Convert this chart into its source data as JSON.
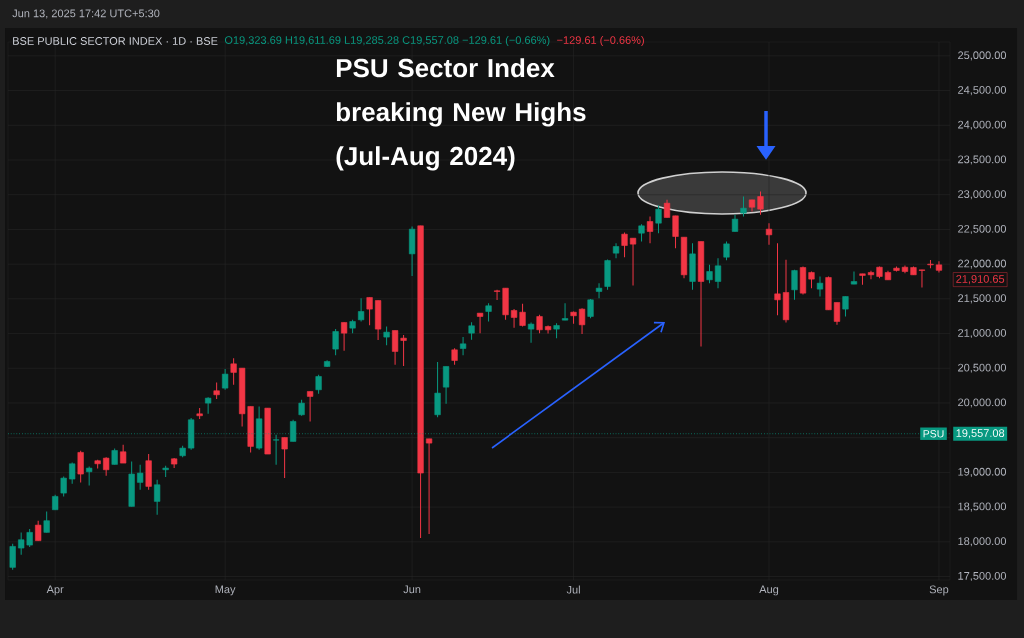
{
  "chart_data": {
    "type": "candlestick",
    "title": "BSE PUBLIC SECTOR INDEX · 1D · BSE",
    "categories": [
      null,
      null,
      null,
      null,
      null,
      "Apr",
      null,
      null,
      null,
      null,
      null,
      null,
      null,
      null,
      null,
      null,
      null,
      null,
      null,
      null,
      null,
      null,
      null,
      null,
      null,
      "May",
      null,
      null,
      null,
      null,
      null,
      null,
      null,
      null,
      null,
      null,
      null,
      null,
      null,
      null,
      null,
      null,
      null,
      null,
      null,
      null,
      null,
      "Jun",
      null,
      null,
      null,
      null,
      null,
      null,
      null,
      null,
      null,
      null,
      null,
      null,
      null,
      null,
      null,
      null,
      null,
      null,
      "Jul",
      null,
      null,
      null,
      null,
      null,
      null,
      null,
      null,
      null,
      null,
      null,
      null,
      null,
      null,
      null,
      null,
      null,
      null,
      null,
      null,
      null,
      null,
      "Aug",
      null,
      null,
      null,
      null,
      null,
      null,
      null,
      null,
      null,
      null,
      null,
      null,
      null,
      null,
      null,
      null,
      null,
      null,
      null,
      "Sep"
    ],
    "ohlc": [
      [
        17632,
        17972,
        17598,
        17934
      ],
      [
        17910,
        18136,
        17814,
        18030
      ],
      [
        17953,
        18184,
        17924,
        18136
      ],
      [
        18241,
        18304,
        18016,
        18016
      ],
      [
        18136,
        18438,
        18136,
        18304
      ],
      [
        18462,
        18678,
        18462,
        18654
      ],
      [
        18702,
        18942,
        18654,
        18918
      ],
      [
        18904,
        19144,
        18836,
        19124
      ],
      [
        19288,
        19312,
        18856,
        18976
      ],
      [
        19009,
        19086,
        18812,
        19062
      ],
      [
        19168,
        19182,
        19057,
        19124
      ],
      [
        19206,
        19220,
        18952,
        19038
      ],
      [
        19115,
        19345,
        19115,
        19316
      ],
      [
        19297,
        19398,
        19134,
        19134
      ],
      [
        18510,
        19158,
        18510,
        18976
      ],
      [
        18856,
        19110,
        18750,
        18990
      ],
      [
        19168,
        19264,
        18750,
        18798
      ],
      [
        18582,
        18894,
        18390,
        18822
      ],
      [
        19038,
        19096,
        18932,
        19062
      ],
      [
        19196,
        19206,
        19062,
        19120
      ],
      [
        19240,
        19384,
        19220,
        19350
      ],
      [
        19350,
        19782,
        19326,
        19758
      ],
      [
        19844,
        19926,
        19768,
        19816
      ],
      [
        19998,
        20084,
        19844,
        20070
      ],
      [
        20176,
        20296,
        20056,
        20118
      ],
      [
        20214,
        20488,
        20190,
        20416
      ],
      [
        20564,
        20646,
        20262,
        20440
      ],
      [
        20502,
        20502,
        19662,
        19844
      ],
      [
        19950,
        19950,
        19288,
        19374
      ],
      [
        19350,
        19950,
        19326,
        19772
      ],
      [
        19926,
        19926,
        19264,
        19264
      ],
      [
        19465,
        19542,
        19110,
        19470
      ],
      [
        19503,
        19503,
        18918,
        19336
      ],
      [
        19446,
        19758,
        19446,
        19734
      ],
      [
        19830,
        20046,
        19816,
        19998
      ],
      [
        20166,
        20166,
        19734,
        20094
      ],
      [
        20190,
        20406,
        20134,
        20382
      ],
      [
        20526,
        20614,
        20518,
        20598
      ],
      [
        20776,
        21064,
        20686,
        21030
      ],
      [
        21160,
        21164,
        20753,
        21006
      ],
      [
        21078,
        21198,
        21006,
        21174
      ],
      [
        21198,
        21510,
        21174,
        21318
      ],
      [
        21520,
        21520,
        21120,
        21352
      ],
      [
        21476,
        21476,
        20907,
        21064
      ],
      [
        20949,
        21102,
        20830,
        21020
      ],
      [
        21044,
        21044,
        20552,
        20742
      ],
      [
        20934,
        20978,
        20534,
        20900
      ],
      [
        22148,
        22542,
        21830,
        22504
      ],
      [
        22552,
        22552,
        18054,
        18990
      ],
      [
        19484,
        19484,
        18114,
        19422
      ],
      [
        19830,
        20590,
        19796,
        20142
      ],
      [
        20228,
        20526,
        19988,
        20526
      ],
      [
        20766,
        20790,
        20552,
        20612
      ],
      [
        20785,
        20950,
        20686,
        20852
      ],
      [
        21006,
        21164,
        20910,
        21112
      ],
      [
        21294,
        21294,
        21006,
        21246
      ],
      [
        21318,
        21438,
        21174,
        21400
      ],
      [
        21616,
        21630,
        21485,
        21606
      ],
      [
        21654,
        21654,
        21198,
        21270
      ],
      [
        21332,
        21352,
        21083,
        21232
      ],
      [
        21308,
        21430,
        21102,
        21116
      ],
      [
        21064,
        21160,
        20866,
        21136
      ],
      [
        21246,
        21270,
        21006,
        21054
      ],
      [
        21102,
        21116,
        21000,
        21054
      ],
      [
        21064,
        21150,
        20934,
        21116
      ],
      [
        21193,
        21438,
        21193,
        21217
      ],
      [
        21308,
        21318,
        21140,
        21256
      ],
      [
        21352,
        21366,
        20992,
        21126
      ],
      [
        21246,
        21496,
        21222,
        21486
      ],
      [
        21606,
        21726,
        21510,
        21654
      ],
      [
        21678,
        22066,
        21630,
        22052
      ],
      [
        22158,
        22302,
        22086,
        22254
      ],
      [
        22432,
        22456,
        22100,
        22268
      ],
      [
        22374,
        22374,
        21694,
        22288
      ],
      [
        22446,
        22576,
        22326,
        22552
      ],
      [
        22614,
        22686,
        22302,
        22470
      ],
      [
        22590,
        22845,
        22446,
        22792
      ],
      [
        22878,
        22926,
        22672,
        22672
      ],
      [
        22696,
        22696,
        22230,
        22398
      ],
      [
        22388,
        22388,
        21798,
        21846
      ],
      [
        21750,
        22302,
        21630,
        22148
      ],
      [
        22326,
        22326,
        20814,
        21750
      ],
      [
        21774,
        21990,
        21726,
        21894
      ],
      [
        21750,
        22086,
        21654,
        21976
      ],
      [
        22100,
        22326,
        22056,
        22292
      ],
      [
        22470,
        22710,
        22470,
        22648
      ],
      [
        22734,
        22974,
        22686,
        22806
      ],
      [
        22926,
        22926,
        22758,
        22820
      ],
      [
        22974,
        23046,
        22710,
        22792
      ],
      [
        22504,
        22590,
        22278,
        22422
      ],
      [
        21572,
        22302,
        21262,
        21486
      ],
      [
        21592,
        22062,
        21160,
        21198
      ],
      [
        21630,
        21918,
        21486,
        21908
      ],
      [
        21952,
        21966,
        21562,
        21582
      ],
      [
        21880,
        21894,
        21654,
        21784
      ],
      [
        21640,
        21822,
        21534,
        21726
      ],
      [
        21808,
        21822,
        21342,
        21342
      ],
      [
        21448,
        21448,
        21126,
        21174
      ],
      [
        21352,
        21534,
        21246,
        21534
      ],
      [
        21712,
        21894,
        21712,
        21750
      ],
      [
        21861,
        21861,
        21702,
        21836
      ],
      [
        21880,
        21904,
        21784,
        21846
      ],
      [
        21956,
        21966,
        21798,
        21822
      ],
      [
        21880,
        21904,
        21774,
        21774
      ],
      [
        21942,
        21966,
        21894,
        21908
      ],
      [
        21956,
        21980,
        21870,
        21894
      ],
      [
        21952,
        21966,
        21846,
        21846
      ],
      [
        21918,
        21918,
        21662,
        21908
      ],
      [
        22000,
        22060,
        21940,
        21990
      ],
      [
        21990,
        22040,
        21880,
        21910.65
      ]
    ],
    "colors": [
      "#089981",
      "#089981",
      "#089981",
      "#f23645",
      "#089981",
      "#089981",
      "#089981",
      "#089981",
      "#f23645",
      "#089981",
      "#f23645",
      "#f23645",
      "#089981",
      "#f23645",
      "#089981",
      "#089981",
      "#f23645",
      "#089981",
      "#089981",
      "#f23645",
      "#089981",
      "#089981",
      "#f23645",
      "#089981",
      "#f23645",
      "#089981",
      "#f23645",
      "#f23645",
      "#f23645",
      "#089981",
      "#f23645",
      "#089981",
      "#f23645",
      "#089981",
      "#089981",
      "#f23645",
      "#089981",
      "#089981",
      "#089981",
      "#f23645",
      "#089981",
      "#089981",
      "#f23645",
      "#f23645",
      "#089981",
      "#f23645",
      "#f23645",
      "#089981",
      "#f23645",
      "#f23645",
      "#089981",
      "#089981",
      "#f23645",
      "#089981",
      "#089981",
      "#f23645",
      "#089981",
      "#f23645",
      "#f23645",
      "#f23645",
      "#f23645",
      "#089981",
      "#f23645",
      "#f23645",
      "#089981",
      "#089981",
      "#f23645",
      "#f23645",
      "#089981",
      "#089981",
      "#089981",
      "#089981",
      "#f23645",
      "#f23645",
      "#089981",
      "#f23645",
      "#089981",
      "#f23645",
      "#f23645",
      "#f23645",
      "#089981",
      "#f23645",
      "#089981",
      "#089981",
      "#089981",
      "#089981",
      "#089981",
      "#f23645",
      "#f23645",
      "#f23645",
      "#f23645",
      "#f23645",
      "#089981",
      "#f23645",
      "#f23645",
      "#089981",
      "#f23645",
      "#f23645",
      "#089981",
      "#089981",
      "#f23645",
      "#f23645",
      "#f23645",
      "#f23645",
      "#f23645",
      "#f23645",
      "#f23645",
      "#f23645",
      "#f23645",
      "#f23645"
    ],
    "ylim": [
      17450,
      25200
    ],
    "yticks": [
      {
        "value": 17500,
        "label": "17,500.00"
      },
      {
        "value": 18000,
        "label": "18,000.00"
      },
      {
        "value": 18500,
        "label": "18,500.00"
      },
      {
        "value": 19000,
        "label": "19,000.00"
      },
      {
        "value": 19500,
        "label": null
      },
      {
        "value": 20000,
        "label": "20,000.00"
      },
      {
        "value": 20500,
        "label": "20,500.00"
      },
      {
        "value": 21000,
        "label": "21,000.00"
      },
      {
        "value": 21500,
        "label": "21,500.00"
      },
      {
        "value": 22000,
        "label": "22,000.00"
      },
      {
        "value": 22500,
        "label": "22,500.00"
      },
      {
        "value": 23000,
        "label": "23,000.00"
      },
      {
        "value": 23500,
        "label": "23,500.00"
      },
      {
        "value": 24000,
        "label": "24,000.00"
      },
      {
        "value": 24500,
        "label": "24,500.00"
      },
      {
        "value": 25000,
        "label": "25,000.00"
      }
    ],
    "grid": true,
    "ref_lines": [
      {
        "axis": "y",
        "value": 19557.08,
        "label": "19,557.08",
        "color": "#089981",
        "line_style": "dotted"
      }
    ],
    "annotations": [
      "Jun 13, 2025 17:42 UTC+5:30",
      "O19,323.69 H19,611.69 L19,285.28 C19,557.08 −129.61 (−0.66%)",
      "−129.61 (−0.66%)",
      "PSU Sector Index breaking New Highs (Jul-Aug 2024)",
      "PSU",
      "21,910.65"
    ]
  }
}
